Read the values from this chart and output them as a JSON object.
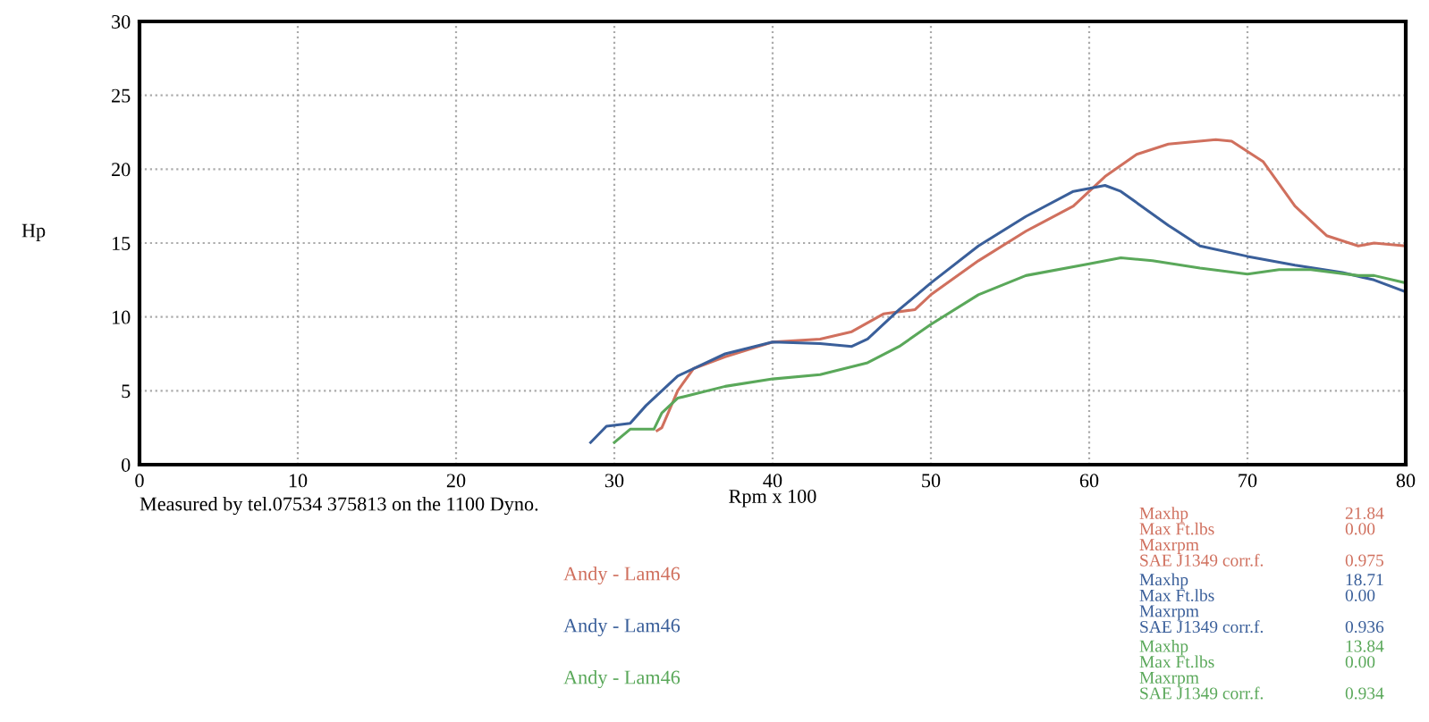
{
  "chart_data": {
    "type": "line",
    "xlabel": "Rpm x 100",
    "ylabel": "Hp",
    "xlim": [
      0,
      80
    ],
    "xticks": [
      0,
      10,
      20,
      30,
      40,
      50,
      60,
      70,
      80
    ],
    "ylim": [
      0,
      30
    ],
    "yticks": [
      0,
      5,
      10,
      15,
      20,
      25,
      30
    ],
    "grid": true,
    "series": [
      {
        "name": "Andy - Lam46",
        "color": "#d0705e",
        "x": [
          32.7,
          33,
          34,
          35,
          37,
          40,
          43,
          45,
          47,
          49,
          50,
          53,
          56,
          59,
          61,
          63,
          65,
          68,
          69,
          71,
          73,
          75,
          77,
          78,
          80
        ],
        "values": [
          2.3,
          2.5,
          5,
          6.5,
          7.3,
          8.3,
          8.5,
          9.0,
          10.2,
          10.5,
          11.5,
          13.8,
          15.8,
          17.5,
          19.5,
          21,
          21.7,
          22,
          21.9,
          20.5,
          17.5,
          15.5,
          14.8,
          15,
          14.8
        ]
      },
      {
        "name": "Andy - Lam46",
        "color": "#3a5f9a",
        "x": [
          28.5,
          29.5,
          31,
          32,
          34,
          37,
          40,
          43,
          45,
          46,
          48,
          50,
          53,
          56,
          59,
          61,
          62,
          65,
          67,
          70,
          73,
          76,
          78,
          80
        ],
        "values": [
          1.5,
          2.6,
          2.8,
          4,
          6,
          7.5,
          8.3,
          8.2,
          8.0,
          8.5,
          10.5,
          12.3,
          14.8,
          16.8,
          18.5,
          18.9,
          18.5,
          16.2,
          14.8,
          14.1,
          13.5,
          13,
          12.5,
          11.7
        ]
      },
      {
        "name": "Andy - Lam46",
        "color": "#5aa85a",
        "x": [
          30,
          31,
          32.5,
          33,
          34,
          37,
          40,
          43,
          46,
          48,
          50,
          53,
          56,
          60,
          62,
          64,
          67,
          70,
          72,
          74,
          77,
          78,
          80
        ],
        "values": [
          1.5,
          2.4,
          2.4,
          3.5,
          4.5,
          5.3,
          5.8,
          6.1,
          6.9,
          8.0,
          9.5,
          11.5,
          12.8,
          13.6,
          14.0,
          13.8,
          13.3,
          12.9,
          13.2,
          13.2,
          12.8,
          12.8,
          12.3
        ]
      }
    ],
    "annotations": [
      "Measured by tel.07534 375813 on the 1100 Dyno.",
      "Maxhp 21.84",
      "Max Ft.lbs 0.00",
      "Maxrpm",
      "SAE J1349 corr.f. 0.975",
      "Maxhp 18.71",
      "Max Ft.lbs 0.00",
      "Maxrpm",
      "SAE J1349 corr.f. 0.936",
      "Maxhp 13.84",
      "Max Ft.lbs 0.00",
      "Maxrpm",
      "SAE J1349 corr.f. 0.934"
    ]
  }
}
